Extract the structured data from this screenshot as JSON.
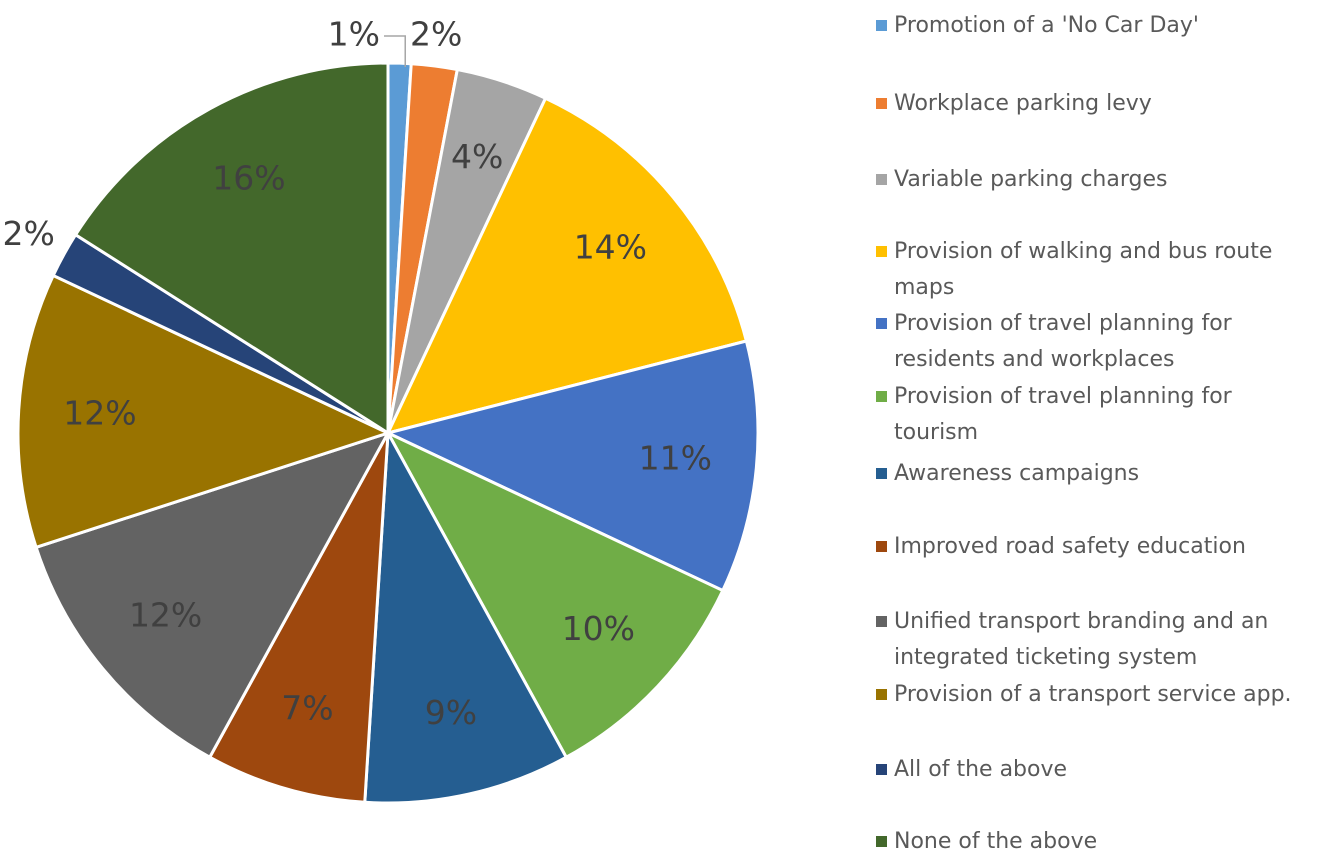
{
  "chart_data": {
    "type": "pie",
    "categories": [
      "Promotion of a 'No Car Day'",
      "Workplace parking levy",
      "Variable parking charges",
      "Provision of walking and bus route maps",
      "Provision of travel planning for residents and workplaces",
      "Provision of travel planning for tourism",
      "Awareness campaigns",
      "Improved road safety education",
      "Unified transport branding and an integrated ticketing system",
      "Provision of a transport service app.",
      "All of the above",
      "None of the above"
    ],
    "values": [
      1,
      2,
      4,
      14,
      11,
      10,
      9,
      7,
      12,
      12,
      2,
      16
    ],
    "value_labels": [
      "1%",
      "2%",
      "4%",
      "14%",
      "11%",
      "10%",
      "9%",
      "7%",
      "12%",
      "12%",
      "2%",
      "16%"
    ],
    "colors": [
      "#5b9bd5",
      "#ed7d31",
      "#a5a5a5",
      "#ffc000",
      "#4472c4",
      "#70ad47",
      "#255e91",
      "#9e480e",
      "#636363",
      "#997300",
      "#264478",
      "#43682b"
    ]
  }
}
